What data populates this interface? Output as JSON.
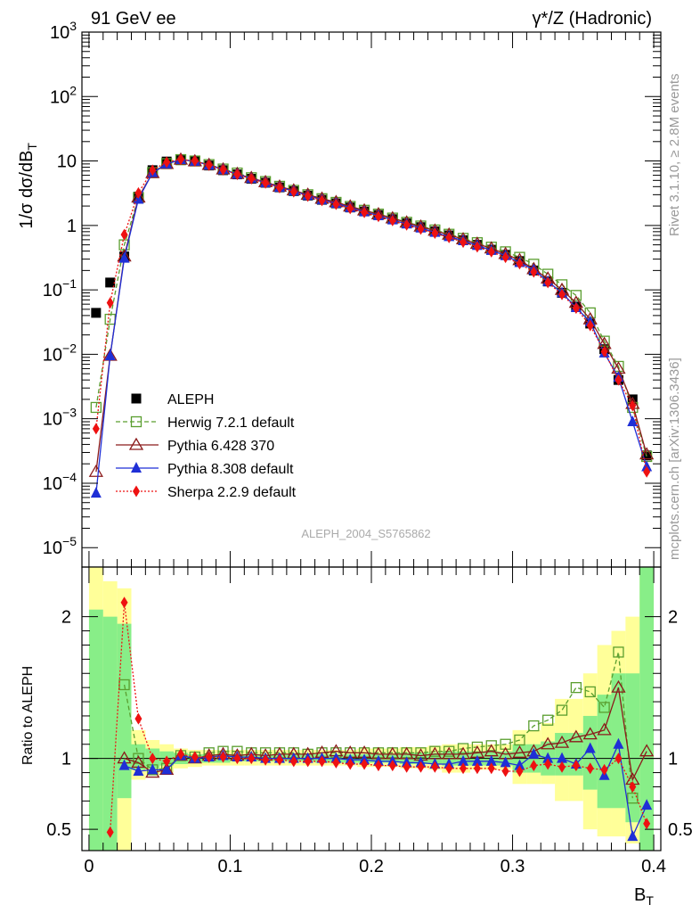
{
  "header": {
    "left_label": "91 GeV ee",
    "right_label": "γ*/Z (Hadronic)"
  },
  "side_labels": {
    "rivet": "Rivet 3.1.10, ≥ 2.8M events",
    "mcplots": "mcplots.cern.ch [arXiv:1306.3436]"
  },
  "watermark": "ALEPH_2004_S5765862",
  "chart_data": [
    {
      "type": "scatter",
      "panel": "main",
      "ylabel": "1/σ dσ/dB_T",
      "yscale": "log",
      "ylim": [
        5e-06,
        1000
      ],
      "xlim": [
        -0.005,
        0.405
      ],
      "yticklabels": [
        "10^-5",
        "10^-4",
        "10^-3",
        "10^-2",
        "10^-1",
        "1",
        "10",
        "10^2",
        "10^3"
      ],
      "legend_position": "lower-left",
      "x": [
        0.005,
        0.015,
        0.025,
        0.035,
        0.045,
        0.055,
        0.065,
        0.075,
        0.085,
        0.095,
        0.105,
        0.115,
        0.125,
        0.135,
        0.145,
        0.155,
        0.165,
        0.175,
        0.185,
        0.195,
        0.205,
        0.215,
        0.225,
        0.235,
        0.245,
        0.255,
        0.265,
        0.275,
        0.285,
        0.295,
        0.305,
        0.315,
        0.325,
        0.335,
        0.345,
        0.355,
        0.365,
        0.375,
        0.385,
        0.395
      ],
      "series": [
        {
          "name": "ALEPH",
          "color": "#000000",
          "marker": "square-filled",
          "values": [
            0.044,
            0.13,
            0.33,
            2.8,
            7.2,
            9.8,
            10.3,
            9.9,
            8.5,
            7.2,
            6.2,
            5.3,
            4.6,
            3.9,
            3.4,
            2.9,
            2.5,
            2.2,
            1.9,
            1.65,
            1.45,
            1.25,
            1.08,
            0.94,
            0.81,
            0.7,
            0.59,
            0.5,
            0.42,
            0.35,
            0.28,
            0.2,
            0.135,
            0.09,
            0.055,
            0.03,
            0.012,
            0.004,
            0.002,
            0.00027
          ]
        },
        {
          "name": "Herwig 7.2.1 default",
          "color": "#5a9e2f",
          "marker": "square-open",
          "line": "dashed",
          "values": [
            0.0015,
            0.035,
            0.5,
            2.7,
            6.6,
            9.1,
            10.5,
            10.0,
            8.8,
            7.5,
            6.5,
            5.5,
            4.8,
            4.05,
            3.5,
            3.0,
            2.6,
            2.28,
            1.97,
            1.72,
            1.5,
            1.3,
            1.12,
            0.98,
            0.85,
            0.73,
            0.63,
            0.54,
            0.46,
            0.39,
            0.32,
            0.25,
            0.175,
            0.12,
            0.082,
            0.044,
            0.016,
            0.0065,
            0.0015,
            0.00026
          ]
        },
        {
          "name": "Pythia 6.428 370",
          "color": "#8b1a1a",
          "marker": "triangle-open",
          "line": "solid",
          "values": [
            0.00015,
            0.0095,
            0.33,
            2.72,
            6.5,
            9.0,
            10.5,
            9.9,
            8.7,
            7.4,
            6.3,
            5.45,
            4.7,
            4.0,
            3.5,
            3.0,
            2.6,
            2.3,
            1.97,
            1.71,
            1.49,
            1.29,
            1.11,
            0.96,
            0.83,
            0.72,
            0.61,
            0.52,
            0.44,
            0.36,
            0.29,
            0.21,
            0.15,
            0.1,
            0.063,
            0.035,
            0.0145,
            0.006,
            0.0017,
            0.00028
          ]
        },
        {
          "name": "Pythia 8.308 default",
          "color": "#1f2fd6",
          "marker": "triangle-filled",
          "line": "solid",
          "values": [
            7e-05,
            0.0095,
            0.31,
            2.55,
            6.6,
            9.0,
            10.5,
            9.9,
            8.6,
            7.35,
            6.25,
            5.35,
            4.6,
            3.9,
            3.4,
            2.9,
            2.5,
            2.2,
            1.89,
            1.63,
            1.42,
            1.22,
            1.05,
            0.91,
            0.78,
            0.67,
            0.58,
            0.49,
            0.41,
            0.34,
            0.265,
            0.205,
            0.135,
            0.09,
            0.053,
            0.032,
            0.0105,
            0.0044,
            0.0009,
            0.00018
          ]
        },
        {
          "name": "Sherpa 2.2.9 default",
          "color": "#ee1111",
          "marker": "diamond-filled",
          "line": "dotted",
          "values": [
            0.0007,
            0.063,
            0.72,
            3.2,
            7.2,
            9.6,
            10.6,
            10.0,
            8.6,
            7.3,
            6.2,
            5.3,
            4.55,
            3.85,
            3.33,
            2.85,
            2.44,
            2.13,
            1.83,
            1.59,
            1.38,
            1.19,
            1.02,
            0.88,
            0.76,
            0.65,
            0.55,
            0.465,
            0.39,
            0.32,
            0.255,
            0.19,
            0.13,
            0.085,
            0.052,
            0.028,
            0.011,
            0.004,
            0.0016,
            0.00015
          ]
        }
      ]
    },
    {
      "type": "line",
      "panel": "ratio",
      "ylabel": "Ratio to ALEPH",
      "xlabel": "B_T",
      "ylim": [
        0.35,
        2.35
      ],
      "xlim": [
        -0.005,
        0.405
      ],
      "xticklabels": [
        "0",
        "0.1",
        "0.2",
        "0.3",
        "0.4"
      ],
      "yticklabels": [
        "0.5",
        "1",
        "2"
      ],
      "x": [
        0.005,
        0.015,
        0.025,
        0.035,
        0.045,
        0.055,
        0.065,
        0.075,
        0.085,
        0.095,
        0.105,
        0.115,
        0.125,
        0.135,
        0.145,
        0.155,
        0.165,
        0.175,
        0.185,
        0.195,
        0.205,
        0.215,
        0.225,
        0.235,
        0.245,
        0.255,
        0.265,
        0.275,
        0.285,
        0.295,
        0.305,
        0.315,
        0.325,
        0.335,
        0.345,
        0.355,
        0.365,
        0.375,
        0.385,
        0.395
      ],
      "bands": [
        {
          "color": "#ffff99",
          "lo": [
            0.35,
            0.35,
            0.35,
            0.85,
            0.88,
            0.9,
            0.93,
            0.94,
            0.95,
            0.95,
            0.95,
            0.95,
            0.95,
            0.95,
            0.95,
            0.95,
            0.95,
            0.95,
            0.95,
            0.94,
            0.94,
            0.94,
            0.93,
            0.93,
            0.92,
            0.9,
            0.9,
            0.92,
            0.92,
            0.92,
            0.82,
            0.82,
            0.82,
            0.7,
            0.7,
            0.5,
            0.45,
            0.45,
            0.4,
            0.35
          ],
          "hi": [
            2.35,
            2.25,
            2.2,
            1.2,
            1.13,
            1.1,
            1.07,
            1.06,
            1.06,
            1.06,
            1.06,
            1.06,
            1.06,
            1.06,
            1.06,
            1.06,
            1.06,
            1.06,
            1.06,
            1.07,
            1.07,
            1.07,
            1.08,
            1.08,
            1.09,
            1.1,
            1.1,
            1.1,
            1.1,
            1.1,
            1.2,
            1.2,
            1.25,
            1.42,
            1.42,
            1.6,
            1.8,
            1.9,
            2.0,
            2.35
          ]
        },
        {
          "color": "#88ee88",
          "lo": [
            0.35,
            0.35,
            0.72,
            0.92,
            0.93,
            0.95,
            0.96,
            0.97,
            0.97,
            0.97,
            0.98,
            0.98,
            0.98,
            0.98,
            0.98,
            0.98,
            0.97,
            0.97,
            0.97,
            0.97,
            0.97,
            0.97,
            0.96,
            0.96,
            0.96,
            0.95,
            0.95,
            0.95,
            0.95,
            0.95,
            0.9,
            0.9,
            0.88,
            0.88,
            0.88,
            0.78,
            0.65,
            0.65,
            0.55,
            0.35
          ],
          "hi": [
            2.05,
            2.0,
            1.95,
            1.1,
            1.07,
            1.05,
            1.04,
            1.03,
            1.03,
            1.03,
            1.03,
            1.03,
            1.03,
            1.03,
            1.03,
            1.03,
            1.03,
            1.03,
            1.03,
            1.03,
            1.03,
            1.03,
            1.04,
            1.04,
            1.04,
            1.05,
            1.05,
            1.05,
            1.05,
            1.05,
            1.1,
            1.1,
            1.12,
            1.18,
            1.18,
            1.3,
            1.45,
            1.6,
            1.6,
            2.35
          ]
        }
      ],
      "series": [
        {
          "name": "Herwig 7.2.1 default",
          "color": "#5a9e2f",
          "marker": "square-open",
          "line": "dashed",
          "values": [
            null,
            null,
            1.52,
            1.0,
            0.92,
            0.93,
            1.02,
            1.01,
            1.04,
            1.05,
            1.05,
            1.04,
            1.04,
            1.04,
            1.04,
            1.03,
            1.04,
            1.04,
            1.04,
            1.04,
            1.04,
            1.04,
            1.04,
            1.04,
            1.05,
            1.05,
            1.07,
            1.08,
            1.09,
            1.1,
            1.13,
            1.23,
            1.27,
            1.34,
            1.5,
            1.47,
            1.36,
            1.75,
            0.72,
            null
          ]
        },
        {
          "name": "Pythia 6.428 370",
          "color": "#8b1a1a",
          "marker": "triangle-open",
          "line": "solid",
          "values": [
            null,
            null,
            1.0,
            0.97,
            0.9,
            0.92,
            1.02,
            1.0,
            1.02,
            1.03,
            1.02,
            1.03,
            1.02,
            1.03,
            1.03,
            1.03,
            1.04,
            1.05,
            1.04,
            1.04,
            1.03,
            1.03,
            1.03,
            1.02,
            1.03,
            1.03,
            1.03,
            1.04,
            1.05,
            1.03,
            1.04,
            1.05,
            1.1,
            1.11,
            1.15,
            1.17,
            1.2,
            1.5,
            0.85,
            1.05
          ]
        },
        {
          "name": "Pythia 8.308 default",
          "color": "#1f2fd6",
          "marker": "triangle-filled",
          "line": "solid",
          "values": [
            null,
            null,
            0.95,
            0.91,
            0.92,
            0.92,
            1.02,
            1.0,
            1.01,
            1.02,
            1.01,
            1.01,
            1.0,
            1.0,
            1.0,
            1.0,
            1.0,
            1.0,
            0.99,
            0.99,
            0.98,
            0.98,
            0.97,
            0.97,
            0.96,
            0.96,
            0.98,
            0.98,
            0.98,
            0.97,
            0.95,
            1.03,
            1.0,
            1.0,
            0.96,
            1.07,
            0.88,
            1.1,
            0.45,
            0.67
          ]
        },
        {
          "name": "Sherpa 2.2.9 default",
          "color": "#ee1111",
          "marker": "diamond-filled",
          "line": "dotted",
          "values": [
            null,
            0.48,
            2.1,
            1.28,
            1.0,
            0.98,
            1.03,
            1.01,
            1.01,
            1.01,
            1.0,
            1.0,
            0.99,
            0.99,
            0.98,
            0.98,
            0.98,
            0.97,
            0.96,
            0.96,
            0.95,
            0.95,
            0.94,
            0.94,
            0.94,
            0.93,
            0.93,
            0.93,
            0.93,
            0.91,
            0.91,
            0.95,
            0.96,
            0.94,
            0.95,
            0.93,
            0.92,
            1.0,
            0.8,
            0.54
          ]
        }
      ]
    }
  ]
}
